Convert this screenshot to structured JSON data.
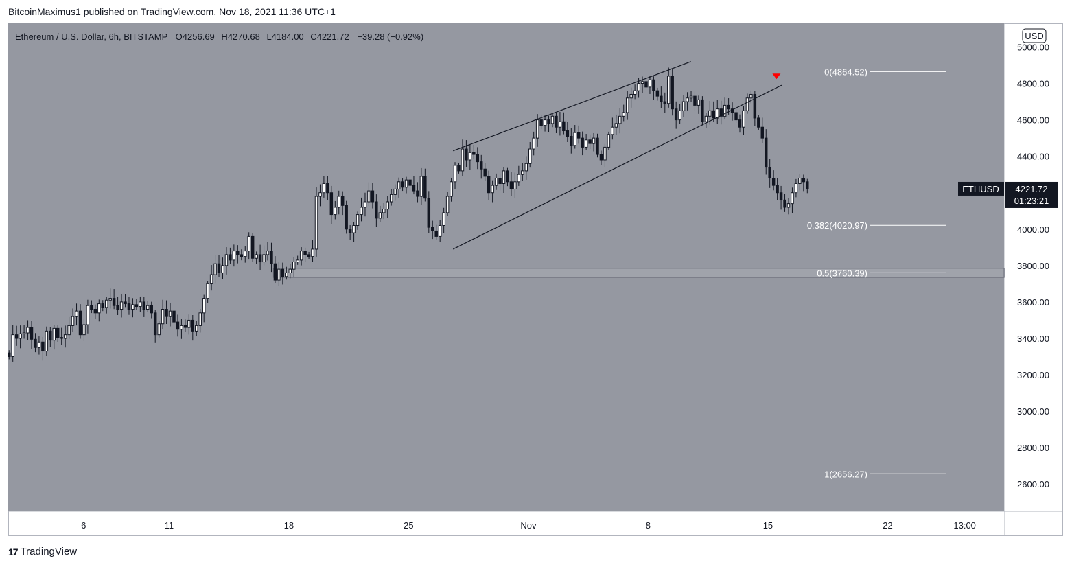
{
  "header": {
    "publisher": "BitcoinMaximus1 published on TradingView.com, Nov 18, 2021 11:36 UTC+1"
  },
  "footer": {
    "brand": "TradingView"
  },
  "colors": {
    "chart_bg": "#9598a1",
    "candle_up": "#ffffff",
    "candle_down": "#131722",
    "line": "#131722",
    "fib_line": "#ffffff",
    "arrow": "#ff0000",
    "label_bg": "#131722"
  },
  "chart_data": {
    "type": "candlestick",
    "symbol_line": {
      "name": "Ethereum / U.S. Dollar, 6h, BITSTAMP",
      "open_label": "O",
      "open": "4256.69",
      "high_label": "H",
      "high": "4270.68",
      "low_label": "L",
      "low": "4184.00",
      "close_label": "C",
      "close": "4221.72",
      "change": "−39.28 (−0.92%)"
    },
    "currency": "USD",
    "y_ticks": [
      "5000.00",
      "4800.00",
      "4600.00",
      "4400.00",
      "4200.00",
      "4000.00",
      "3800.00",
      "3600.00",
      "3400.00",
      "3200.00",
      "3000.00",
      "2800.00",
      "2600.00"
    ],
    "y_range": [
      2450,
      5130
    ],
    "x_ticks": [
      {
        "label": "6",
        "day": 6
      },
      {
        "label": "11",
        "day": 11
      },
      {
        "label": "18",
        "day": 18
      },
      {
        "label": "25",
        "day": 25
      },
      {
        "label": "Nov",
        "day": 32
      },
      {
        "label": "8",
        "day": 39
      },
      {
        "label": "15",
        "day": 46
      },
      {
        "label": "22",
        "day": 53
      },
      {
        "label": "13:00",
        "day": 57.5
      }
    ],
    "price_label": {
      "symbol": "ETHUSD",
      "price": "4221.72",
      "countdown": "01:23:21"
    },
    "fib_levels": [
      {
        "label": "0(4864.52)",
        "value": 4864.52
      },
      {
        "label": "0.382(4020.97)",
        "value": 4020.97
      },
      {
        "label": "0.5(3760.39)",
        "value": 3760.39
      },
      {
        "label": "1(2656.27)",
        "value": 2656.27
      }
    ],
    "support_zone": {
      "start_day": 17.1,
      "top": 3785,
      "bottom": 3735
    },
    "channel_lines": [
      {
        "from": {
          "day": 27.6,
          "price": 4430
        },
        "to": {
          "day": 41.5,
          "price": 4920
        }
      },
      {
        "from": {
          "day": 27.6,
          "price": 3890
        },
        "to": {
          "day": 46.8,
          "price": 4790
        }
      }
    ],
    "sell_arrow": {
      "day": 46.5,
      "price": 4835
    },
    "closes": [
      3300,
      3420,
      3400,
      3425,
      3430,
      3460,
      3395,
      3350,
      3380,
      3330,
      3440,
      3390,
      3455,
      3405,
      3400,
      3420,
      3470,
      3520,
      3550,
      3420,
      3475,
      3580,
      3560,
      3540,
      3590,
      3570,
      3610,
      3620,
      3580,
      3560,
      3600,
      3590,
      3560,
      3585,
      3575,
      3600,
      3560,
      3580,
      3540,
      3420,
      3480,
      3560,
      3520,
      3550,
      3490,
      3450,
      3470,
      3460,
      3500,
      3440,
      3470,
      3540,
      3620,
      3700,
      3750,
      3810,
      3760,
      3800,
      3860,
      3830,
      3880,
      3860,
      3850,
      3880,
      3960,
      3840,
      3860,
      3820,
      3860,
      3880,
      3810,
      3720,
      3780,
      3740,
      3760,
      3780,
      3820,
      3830,
      3880,
      3860,
      3850,
      3890,
      4180,
      4200,
      4250,
      4200,
      4080,
      4120,
      4180,
      4130,
      4000,
      3980,
      4020,
      4080,
      4120,
      4150,
      4210,
      4150,
      4060,
      4090,
      4110,
      4150,
      4190,
      4220,
      4260,
      4230,
      4270,
      4240,
      4210,
      4180,
      4290,
      4170,
      4010,
      3990,
      3960,
      4020,
      4090,
      4180,
      4260,
      4350,
      4320,
      4440,
      4380,
      4420,
      4410,
      4370,
      4330,
      4290,
      4200,
      4240,
      4280,
      4250,
      4320,
      4260,
      4220,
      4260,
      4300,
      4320,
      4360,
      4440,
      4500,
      4600,
      4570,
      4600,
      4580,
      4620,
      4560,
      4590,
      4540,
      4510,
      4460,
      4530,
      4500,
      4450,
      4490,
      4470,
      4500,
      4410,
      4380,
      4450,
      4520,
      4560,
      4580,
      4620,
      4640,
      4720,
      4740,
      4760,
      4800,
      4810,
      4780,
      4820,
      4760,
      4730,
      4700,
      4690,
      4840,
      4660,
      4600,
      4650,
      4700,
      4720,
      4730,
      4680,
      4710,
      4590,
      4620,
      4650,
      4610,
      4660,
      4620,
      4680,
      4660,
      4640,
      4600,
      4560,
      4650,
      4720,
      4740,
      4610,
      4560,
      4500,
      4340,
      4280,
      4240,
      4200,
      4160,
      4120,
      4140,
      4200,
      4250,
      4280,
      4260,
      4221.72
    ]
  }
}
